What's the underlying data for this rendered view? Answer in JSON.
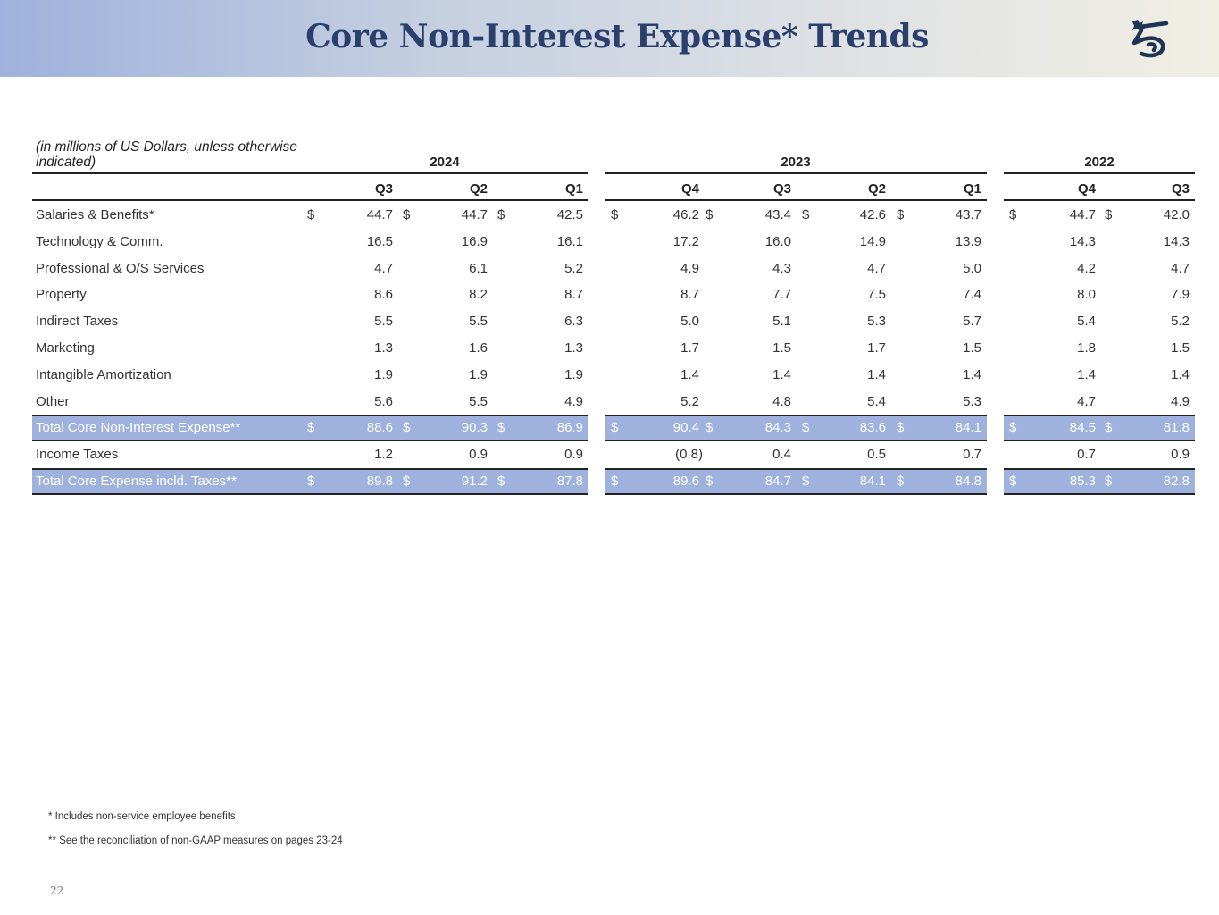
{
  "header": {
    "title": "Core Non-Interest Expense* Trends"
  },
  "logo": {
    "icon": "company-logo-icon",
    "color": "#1f3355"
  },
  "table": {
    "units_note": "(in millions of US Dollars, unless otherwise indicated)",
    "units_note_line1": "(in millions of US Dollars, unless otherwise",
    "units_note_line2": "indicated)",
    "years": [
      "2024",
      "2023",
      "2022"
    ],
    "quarters": [
      "Q3",
      "Q2",
      "Q1",
      "Q4",
      "Q3",
      "Q2",
      "Q1",
      "Q4",
      "Q3"
    ],
    "currency_symbol": "$",
    "rows": [
      {
        "label": "Salaries & Benefits*",
        "values": [
          "44.7",
          "44.7",
          "42.5",
          "46.2",
          "43.4",
          "42.6",
          "43.7",
          "44.7",
          "42.0"
        ],
        "show_dollar": true,
        "total": false
      },
      {
        "label": "Technology & Comm.",
        "values": [
          "16.5",
          "16.9",
          "16.1",
          "17.2",
          "16.0",
          "14.9",
          "13.9",
          "14.3",
          "14.3"
        ],
        "show_dollar": false,
        "total": false
      },
      {
        "label": "Professional & O/S Services",
        "values": [
          "4.7",
          "6.1",
          "5.2",
          "4.9",
          "4.3",
          "4.7",
          "5.0",
          "4.2",
          "4.7"
        ],
        "show_dollar": false,
        "total": false
      },
      {
        "label": "Property",
        "values": [
          "8.6",
          "8.2",
          "8.7",
          "8.7",
          "7.7",
          "7.5",
          "7.4",
          "8.0",
          "7.9"
        ],
        "show_dollar": false,
        "total": false
      },
      {
        "label": "Indirect Taxes",
        "values": [
          "5.5",
          "5.5",
          "6.3",
          "5.0",
          "5.1",
          "5.3",
          "5.7",
          "5.4",
          "5.2"
        ],
        "show_dollar": false,
        "total": false
      },
      {
        "label": "Marketing",
        "values": [
          "1.3",
          "1.6",
          "1.3",
          "1.7",
          "1.5",
          "1.7",
          "1.5",
          "1.8",
          "1.5"
        ],
        "show_dollar": false,
        "total": false
      },
      {
        "label": "Intangible Amortization",
        "values": [
          "1.9",
          "1.9",
          "1.9",
          "1.4",
          "1.4",
          "1.4",
          "1.4",
          "1.4",
          "1.4"
        ],
        "show_dollar": false,
        "total": false
      },
      {
        "label": "Other",
        "values": [
          "5.6",
          "5.5",
          "4.9",
          "5.2",
          "4.8",
          "5.4",
          "5.3",
          "4.7",
          "4.9"
        ],
        "show_dollar": false,
        "total": false
      },
      {
        "label": "Total Core Non-Interest Expense**",
        "values": [
          "88.6",
          "90.3",
          "86.9",
          "90.4",
          "84.3",
          "83.6",
          "84.1",
          "84.5",
          "81.8"
        ],
        "show_dollar": true,
        "total": true
      },
      {
        "label": "Income Taxes",
        "values": [
          "1.2",
          "0.9",
          "0.9",
          "(0.8)",
          "0.4",
          "0.5",
          "0.7",
          "0.7",
          "0.9"
        ],
        "show_dollar": false,
        "total": false
      },
      {
        "label": "Total Core Expense incld. Taxes**",
        "values": [
          "89.8",
          "91.2",
          "87.8",
          "89.6",
          "84.7",
          "84.1",
          "84.8",
          "85.3",
          "82.8"
        ],
        "show_dollar": true,
        "total": true
      }
    ],
    "colors": {
      "total_fill": "#9fb2dd",
      "title": "#2b3f6c"
    }
  },
  "footnotes": [
    "* Includes non-service employee benefits",
    "** See the reconciliation of non-GAAP measures on pages 23-24"
  ],
  "page_number": "22"
}
